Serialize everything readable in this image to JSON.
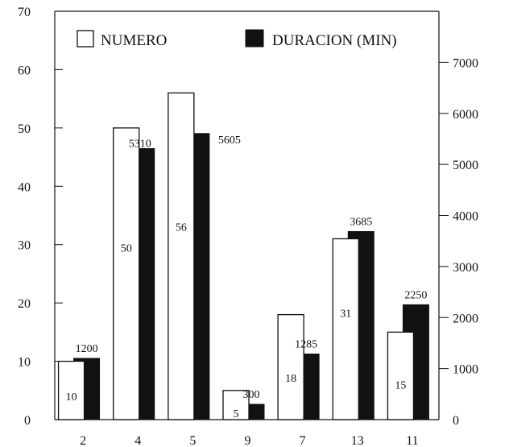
{
  "chart_data": {
    "type": "bar",
    "categories": [
      "2",
      "4",
      "5",
      "9",
      "7",
      "13",
      "11"
    ],
    "series": [
      {
        "name": "NUMERO",
        "axis": "left",
        "fill": "#ffffff",
        "values": [
          10,
          50,
          56,
          5,
          18,
          31,
          15
        ],
        "labels": [
          "10",
          "50",
          "56",
          "5",
          "18",
          "31",
          "15"
        ]
      },
      {
        "name": "DURACION (MIN)",
        "axis": "right",
        "fill": "#111111",
        "values": [
          1200,
          5310,
          5605,
          300,
          1285,
          3685,
          2250
        ],
        "labels": [
          "1200",
          "5310",
          "5605",
          "300",
          "1285",
          "3685",
          "2250"
        ]
      }
    ],
    "y_left": {
      "min": 0,
      "max": 70,
      "ticks": [
        "0",
        "10",
        "20",
        "30",
        "40",
        "50",
        "60",
        "70"
      ]
    },
    "y_right": {
      "min": 0,
      "max": 8000,
      "ticks": [
        "0",
        "1000",
        "2000",
        "3000",
        "4000",
        "5000",
        "6000",
        "7000"
      ]
    },
    "legend_position": "top",
    "grid": false
  }
}
